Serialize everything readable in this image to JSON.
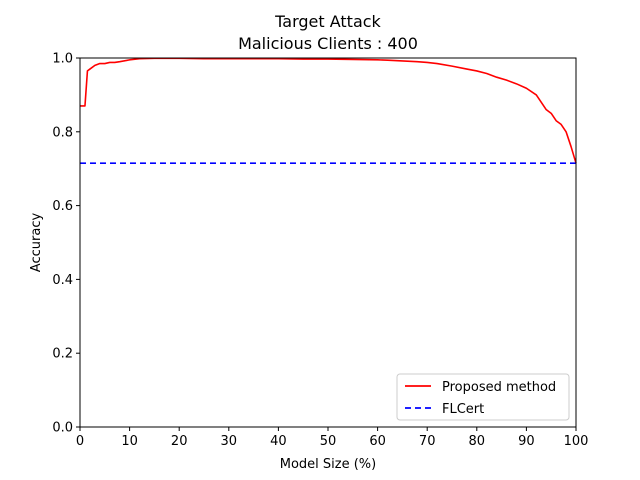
{
  "chart_data": {
    "type": "line",
    "title": "Target Attack",
    "subtitle": "Malicious Clients : 400",
    "xlabel": "Model Size (%)",
    "ylabel": "Accuracy",
    "xlim": [
      0,
      100
    ],
    "ylim": [
      0,
      1.0
    ],
    "xticks": [
      0,
      10,
      20,
      30,
      40,
      50,
      60,
      70,
      80,
      90,
      100
    ],
    "xtick_labels": [
      "0",
      "10",
      "20",
      "30",
      "40",
      "50",
      "60",
      "70",
      "80",
      "90",
      "100"
    ],
    "yticks": [
      0,
      0.2,
      0.4,
      0.6,
      0.8,
      1.0
    ],
    "ytick_labels": [
      "0.0",
      "0.2",
      "0.4",
      "0.6",
      "0.8",
      "1.0"
    ],
    "grid": false,
    "legend_position": "lower-right",
    "series": [
      {
        "name": "Proposed method",
        "color": "#ff0000",
        "style": "solid",
        "x": [
          0,
          1,
          1.5,
          2,
          3,
          4,
          5,
          6,
          7,
          8,
          10,
          12,
          15,
          20,
          25,
          30,
          35,
          40,
          45,
          50,
          55,
          60,
          62,
          65,
          68,
          70,
          72,
          75,
          78,
          80,
          82,
          84,
          86,
          88,
          90,
          92,
          93,
          94,
          95,
          96,
          97,
          98,
          99,
          100
        ],
        "y": [
          0.87,
          0.87,
          0.965,
          0.97,
          0.98,
          0.985,
          0.985,
          0.988,
          0.988,
          0.99,
          0.995,
          0.998,
          0.999,
          0.999,
          0.998,
          0.998,
          0.998,
          0.998,
          0.997,
          0.997,
          0.996,
          0.995,
          0.994,
          0.992,
          0.99,
          0.988,
          0.985,
          0.978,
          0.97,
          0.965,
          0.958,
          0.948,
          0.94,
          0.93,
          0.918,
          0.9,
          0.88,
          0.86,
          0.85,
          0.83,
          0.82,
          0.8,
          0.76,
          0.715
        ]
      },
      {
        "name": "FLCert",
        "color": "#0000ff",
        "style": "dashed",
        "x": [
          0,
          100
        ],
        "y": [
          0.715,
          0.715
        ]
      }
    ]
  }
}
